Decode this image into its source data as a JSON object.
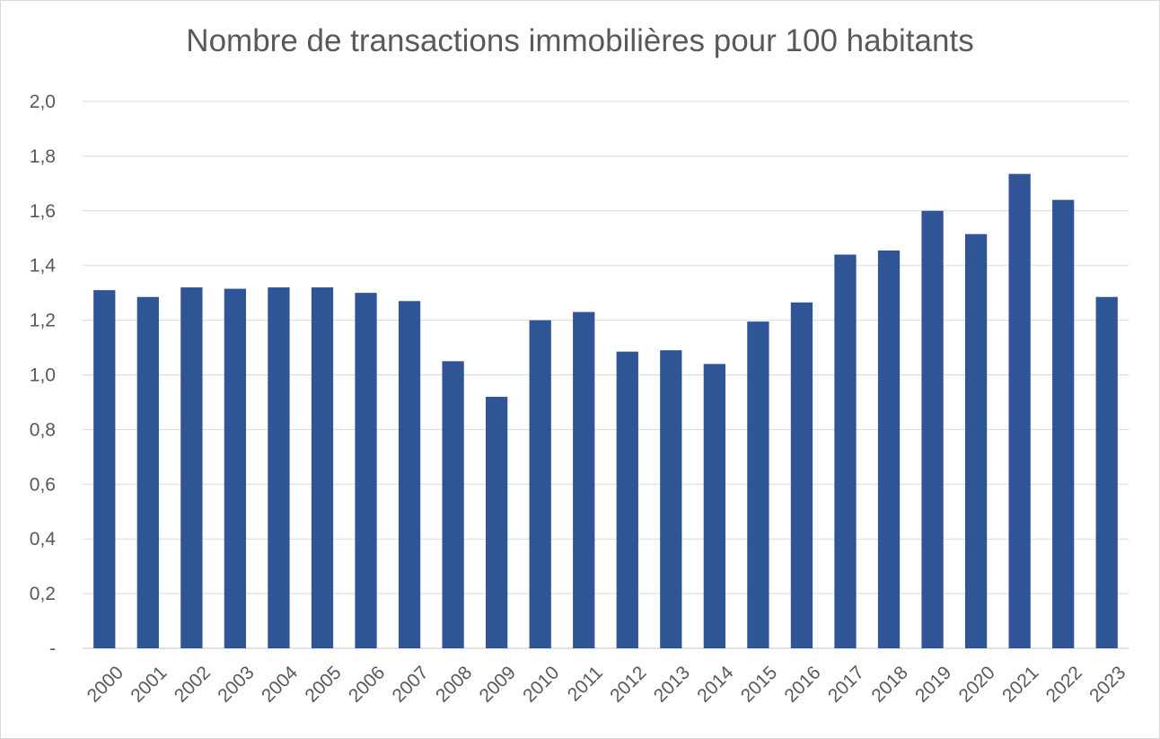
{
  "chart_data": {
    "type": "bar",
    "title": "Nombre de transactions immobilières pour 100 habitants",
    "xlabel": "",
    "ylabel": "",
    "categories": [
      "2000",
      "2001",
      "2002",
      "2003",
      "2004",
      "2005",
      "2006",
      "2007",
      "2008",
      "2009",
      "2010",
      "2011",
      "2012",
      "2013",
      "2014",
      "2015",
      "2016",
      "2017",
      "2018",
      "2019",
      "2020",
      "2021",
      "2022",
      "2023"
    ],
    "values": [
      1.31,
      1.285,
      1.32,
      1.315,
      1.32,
      1.32,
      1.3,
      1.27,
      1.05,
      0.92,
      1.2,
      1.23,
      1.085,
      1.09,
      1.04,
      1.195,
      1.265,
      1.44,
      1.455,
      1.6,
      1.515,
      1.735,
      1.64,
      1.285
    ],
    "ylim": [
      0,
      2.0
    ],
    "yticks": [
      0,
      0.2,
      0.4,
      0.6,
      0.8,
      1.0,
      1.2,
      1.4,
      1.6,
      1.8,
      2.0
    ],
    "ytick_labels": [
      "-",
      "0,2",
      "0,4",
      "0,6",
      "0,8",
      "1,0",
      "1,2",
      "1,4",
      "1,6",
      "1,8",
      "2,0"
    ],
    "grid": true,
    "legend": "none",
    "bar_color": "#2f5597",
    "grid_color": "#d9d9d9",
    "text_color": "#595959"
  }
}
